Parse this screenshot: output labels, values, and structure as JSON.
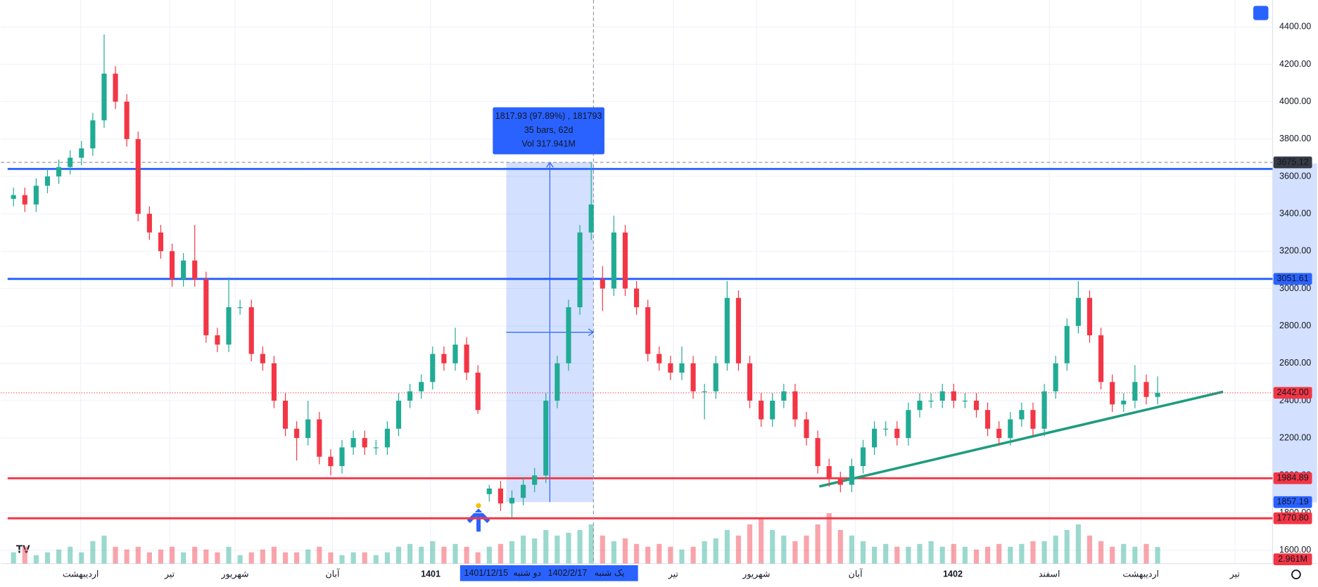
{
  "chart_data": {
    "type": "candlestick",
    "ohlc": [
      [
        3480,
        3540,
        3440,
        3500
      ],
      [
        3500,
        3540,
        3410,
        3450
      ],
      [
        3450,
        3590,
        3410,
        3550
      ],
      [
        3550,
        3640,
        3510,
        3600
      ],
      [
        3600,
        3690,
        3560,
        3650
      ],
      [
        3650,
        3740,
        3610,
        3700
      ],
      [
        3700,
        3790,
        3660,
        3750
      ],
      [
        3750,
        3940,
        3710,
        3900
      ],
      [
        3900,
        4360,
        3860,
        4150
      ],
      [
        4150,
        4190,
        3960,
        4000
      ],
      [
        4000,
        4040,
        3760,
        3800
      ],
      [
        3800,
        3840,
        3360,
        3400
      ],
      [
        3400,
        3440,
        3260,
        3300
      ],
      [
        3300,
        3340,
        3160,
        3200
      ],
      [
        3200,
        3240,
        3010,
        3050
      ],
      [
        3050,
        3190,
        3010,
        3150
      ],
      [
        3150,
        3340,
        3010,
        3050
      ],
      [
        3050,
        3090,
        2710,
        2750
      ],
      [
        2750,
        2790,
        2660,
        2700
      ],
      [
        2700,
        3060,
        2660,
        2900
      ],
      [
        2900,
        2940,
        2860,
        2900
      ],
      [
        2900,
        2940,
        2610,
        2650
      ],
      [
        2650,
        2690,
        2560,
        2600
      ],
      [
        2600,
        2640,
        2360,
        2400
      ],
      [
        2400,
        2440,
        2210,
        2250
      ],
      [
        2250,
        2290,
        2080,
        2200
      ],
      [
        2200,
        2400,
        2160,
        2300
      ],
      [
        2300,
        2340,
        2060,
        2100
      ],
      [
        2100,
        2140,
        2000,
        2050
      ],
      [
        2050,
        2190,
        2010,
        2150
      ],
      [
        2150,
        2240,
        2110,
        2200
      ],
      [
        2200,
        2240,
        2110,
        2150
      ],
      [
        2150,
        2190,
        2110,
        2150
      ],
      [
        2150,
        2290,
        2110,
        2250
      ],
      [
        2250,
        2440,
        2210,
        2400
      ],
      [
        2400,
        2490,
        2360,
        2450
      ],
      [
        2450,
        2540,
        2410,
        2500
      ],
      [
        2500,
        2690,
        2460,
        2650
      ],
      [
        2650,
        2690,
        2560,
        2600
      ],
      [
        2600,
        2790,
        2560,
        2700
      ],
      [
        2700,
        2740,
        2510,
        2550
      ],
      [
        2550,
        2590,
        2330,
        2350
      ],
      [
        1900,
        1950,
        1860,
        1930
      ],
      [
        1930,
        1970,
        1810,
        1850
      ],
      [
        1850,
        1920,
        1770,
        1880
      ],
      [
        1880,
        1990,
        1840,
        1950
      ],
      [
        1950,
        2040,
        1910,
        2000
      ],
      [
        2000,
        2440,
        1960,
        2400
      ],
      [
        2400,
        2640,
        2360,
        2600
      ],
      [
        2600,
        2940,
        2560,
        2900
      ],
      [
        2900,
        3340,
        2860,
        3300
      ],
      [
        3300,
        3675,
        3260,
        3450
      ],
      [
        3050,
        3120,
        2880,
        3000
      ],
      [
        3000,
        3390,
        2960,
        3300
      ],
      [
        3300,
        3340,
        2960,
        3000
      ],
      [
        3000,
        3040,
        2860,
        2900
      ],
      [
        2900,
        2940,
        2610,
        2650
      ],
      [
        2650,
        2690,
        2560,
        2600
      ],
      [
        2600,
        2640,
        2510,
        2550
      ],
      [
        2550,
        2690,
        2510,
        2600
      ],
      [
        2600,
        2640,
        2410,
        2450
      ],
      [
        2450,
        2490,
        2300,
        2450
      ],
      [
        2450,
        2640,
        2410,
        2600
      ],
      [
        2600,
        3040,
        2560,
        2950
      ],
      [
        2950,
        2990,
        2560,
        2600
      ],
      [
        2600,
        2640,
        2360,
        2400
      ],
      [
        2400,
        2440,
        2260,
        2300
      ],
      [
        2300,
        2440,
        2260,
        2400
      ],
      [
        2400,
        2490,
        2360,
        2450
      ],
      [
        2450,
        2490,
        2260,
        2300
      ],
      [
        2300,
        2340,
        2160,
        2200
      ],
      [
        2200,
        2240,
        2010,
        2050
      ],
      [
        2050,
        2090,
        1940,
        1980
      ],
      [
        1980,
        2020,
        1910,
        1950
      ],
      [
        1950,
        2090,
        1910,
        2050
      ],
      [
        2050,
        2190,
        2010,
        2150
      ],
      [
        2150,
        2290,
        2110,
        2250
      ],
      [
        2250,
        2290,
        2210,
        2250
      ],
      [
        2250,
        2290,
        2160,
        2200
      ],
      [
        2200,
        2390,
        2160,
        2350
      ],
      [
        2350,
        2440,
        2310,
        2400
      ],
      [
        2400,
        2440,
        2360,
        2400
      ],
      [
        2400,
        2490,
        2360,
        2450
      ],
      [
        2450,
        2490,
        2360,
        2400
      ],
      [
        2400,
        2440,
        2360,
        2400
      ],
      [
        2400,
        2440,
        2310,
        2350
      ],
      [
        2350,
        2390,
        2210,
        2250
      ],
      [
        2250,
        2290,
        2160,
        2200
      ],
      [
        2200,
        2340,
        2160,
        2300
      ],
      [
        2300,
        2390,
        2260,
        2350
      ],
      [
        2350,
        2390,
        2210,
        2250
      ],
      [
        2250,
        2490,
        2210,
        2450
      ],
      [
        2450,
        2640,
        2410,
        2600
      ],
      [
        2600,
        2840,
        2560,
        2800
      ],
      [
        2800,
        3040,
        2760,
        2950
      ],
      [
        2950,
        2990,
        2710,
        2750
      ],
      [
        2750,
        2790,
        2460,
        2500
      ],
      [
        2500,
        2540,
        2340,
        2380
      ],
      [
        2380,
        2440,
        2340,
        2400
      ],
      [
        2400,
        2590,
        2360,
        2500
      ],
      [
        2500,
        2540,
        2380,
        2420
      ],
      [
        2420,
        2530,
        2380,
        2442
      ]
    ],
    "volume": [
      2,
      3,
      1.5,
      2,
      2.5,
      3,
      2,
      4,
      5,
      3,
      2.5,
      3,
      2,
      2.5,
      3,
      2,
      3,
      2.5,
      2,
      3,
      1.5,
      2,
      2.5,
      3,
      2,
      2,
      2.5,
      3,
      2,
      1.5,
      2,
      2,
      1.5,
      2,
      3,
      3.5,
      3,
      4,
      3,
      3.5,
      3,
      2,
      3,
      3.5,
      4,
      5,
      4.5,
      6,
      5,
      5.5,
      6,
      7,
      5,
      4,
      4.5,
      3.5,
      3,
      3.5,
      3,
      2.5,
      3,
      4,
      4.5,
      6,
      5,
      7,
      8,
      6,
      5,
      4,
      5,
      7,
      9,
      6,
      5,
      4,
      3,
      3.5,
      3,
      3,
      3.5,
      4,
      3,
      3.5,
      3,
      2.5,
      3,
      3.5,
      3,
      3.5,
      4,
      4,
      5,
      6,
      7,
      5,
      4,
      3,
      3.5,
      3,
      3.5,
      2.961
    ],
    "volume_labels": {
      "101": "2.961M"
    },
    "up_color": "#22ab94",
    "down_color": "#f23645",
    "ylim": [
      1403,
      4544
    ],
    "yticks": [
      {
        "value": 1600,
        "label": "1600.00"
      },
      {
        "value": 1800,
        "label": "1800.00"
      },
      {
        "value": 2000,
        "label": "2000.00"
      },
      {
        "value": 2200,
        "label": "2200.00"
      },
      {
        "value": 2400,
        "label": "2400.00"
      },
      {
        "value": 2600,
        "label": "2600.00"
      },
      {
        "value": 2800,
        "label": "2800.00"
      },
      {
        "value": 3000,
        "label": "3000.00"
      },
      {
        "value": 3200,
        "label": "3200.00"
      },
      {
        "value": 3400,
        "label": "3400.00"
      },
      {
        "value": 3600,
        "label": "3600.00"
      },
      {
        "value": 3800,
        "label": "3800.00"
      },
      {
        "value": 4000,
        "label": "4000.00"
      },
      {
        "value": 4200,
        "label": "4200.00"
      },
      {
        "value": 4400,
        "label": "4400.00"
      }
    ],
    "x_labels": [
      "اردیبهشت",
      "تیر",
      "شهریور",
      "آبان",
      "1401",
      "تیر",
      "شهریور",
      "آبان",
      "1402",
      "اسفند",
      "اردیبهشت",
      "تیر"
    ],
    "crosshair_dates": [
      "1401/12/15",
      "دو شنبه",
      "1402/2/17",
      "یک شنبه"
    ],
    "levels": [
      {
        "value": 3640,
        "color": "#2962ff"
      },
      {
        "value": 3051.61,
        "label": "3051.61",
        "color": "#2962ff"
      },
      {
        "value": 1984.89,
        "label": "1984.89",
        "color": "#f23645"
      },
      {
        "value": 1770.8,
        "label": "1770.80",
        "color": "#f23645"
      }
    ],
    "crosshair_price": {
      "value": 3675.12,
      "label": "3675.12"
    },
    "measure_low": {
      "value": 1857.19,
      "label": "1857.19"
    },
    "last_price": {
      "value": 2442,
      "label": "2442.00"
    },
    "measure_text": [
      "1817.93 (97.89%) , 181793",
      "35 bars, 62d",
      "Vol 317.941M"
    ],
    "trendline": {
      "from": 1941,
      "to": 2448,
      "color": "#1e9c7d"
    }
  }
}
